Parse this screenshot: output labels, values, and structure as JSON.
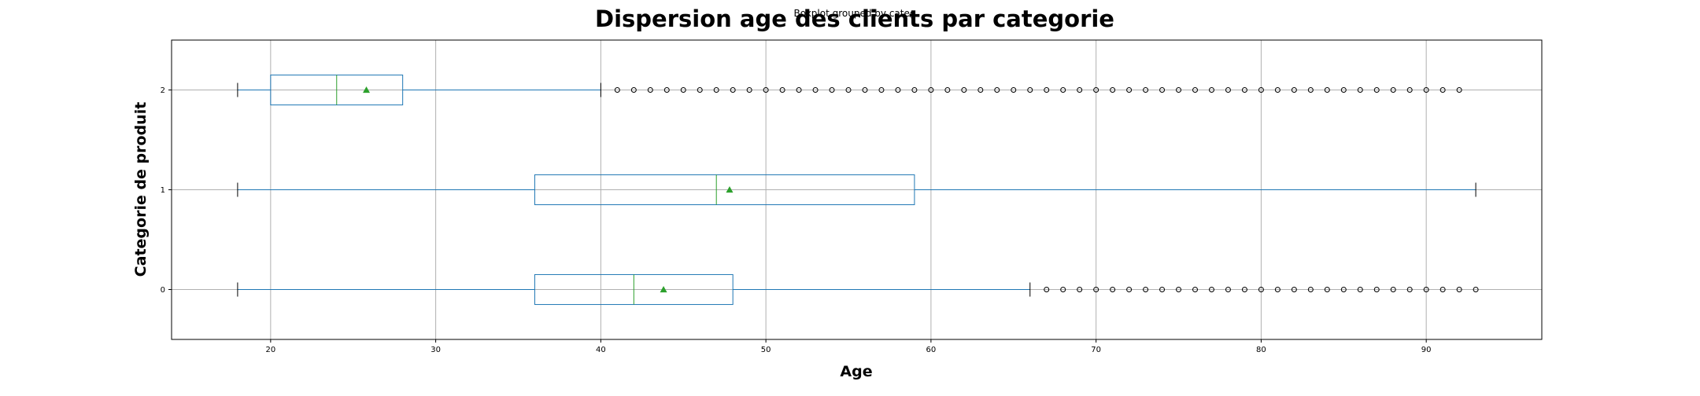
{
  "chart_data": {
    "type": "boxplot",
    "title": "Dispersion age des clients par categorie",
    "subtitle": "Boxplot grouped by categ",
    "xlabel": "Age",
    "ylabel": "Categorie de produit",
    "orientation": "horizontal",
    "xlim": [
      14,
      97
    ],
    "xticks": [
      20,
      30,
      40,
      50,
      60,
      70,
      80,
      90
    ],
    "categories": [
      "0",
      "1",
      "2"
    ],
    "grid": true,
    "colors": {
      "box": "#1f77b4",
      "median": "#2ca02c",
      "mean": "#2ca02c",
      "outlier": "#000000",
      "cap": "#000000"
    },
    "boxes": [
      {
        "category": "0",
        "whisker_low": 18,
        "q1": 36,
        "median": 42,
        "q3": 48,
        "whisker_high": 66,
        "mean": 43.8,
        "outliers": [
          67,
          68,
          69,
          70,
          71,
          72,
          73,
          74,
          75,
          76,
          77,
          78,
          79,
          80,
          81,
          82,
          83,
          84,
          85,
          86,
          87,
          88,
          89,
          90,
          91,
          92,
          93
        ]
      },
      {
        "category": "1",
        "whisker_low": 18,
        "q1": 36,
        "median": 47,
        "q3": 59,
        "whisker_high": 93,
        "mean": 47.8,
        "outliers": []
      },
      {
        "category": "2",
        "whisker_low": 18,
        "q1": 20,
        "median": 24,
        "q3": 28,
        "whisker_high": 40,
        "mean": 25.8,
        "outliers": [
          41,
          42,
          43,
          44,
          45,
          46,
          47,
          48,
          49,
          50,
          51,
          52,
          53,
          54,
          55,
          56,
          57,
          58,
          59,
          60,
          61,
          62,
          63,
          64,
          65,
          66,
          67,
          68,
          69,
          70,
          71,
          72,
          73,
          74,
          75,
          76,
          77,
          78,
          79,
          80,
          81,
          82,
          83,
          84,
          85,
          86,
          87,
          88,
          89,
          90,
          91,
          92
        ]
      }
    ]
  }
}
